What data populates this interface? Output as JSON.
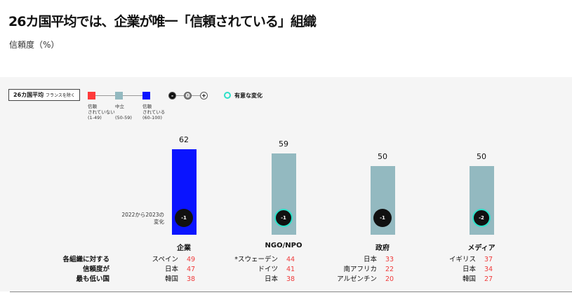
{
  "header": {
    "title": "26カ国平均では、企業が唯一「信頼されている」組織",
    "subtitle": "信頼度（%）"
  },
  "legend": {
    "average_label": "26カ国平均",
    "average_note": "フランスを除く",
    "items": [
      {
        "label": "信頼\nされていない\n(1-49)",
        "color": "#ff3b3b"
      },
      {
        "label": "中立\n\n(50-59)",
        "color": "#93b9c0"
      },
      {
        "label": "信頼\nされている\n(60-100)",
        "color": "#0a14ff"
      }
    ],
    "change_scale": [
      "-",
      "0",
      "+"
    ],
    "significant_label": "有意な変化",
    "significant_color": "#2de0c8"
  },
  "change_label": "2022から2023の\n変化",
  "lowest_label": "各組織に対する\n信頼度が\n最も低い国",
  "chart_data": {
    "type": "bar",
    "title": "26カ国平均では、企業が唯一「信頼されている」組織",
    "ylabel": "信頼度（%）",
    "ylim": [
      0,
      100
    ],
    "categories": [
      "企業",
      "NGO/NPO",
      "政府",
      "メディア"
    ],
    "values": [
      62,
      59,
      50,
      50
    ],
    "value_labels": [
      "62",
      "59",
      "50",
      "50"
    ],
    "colors": [
      "#0a14ff",
      "#93b9c0",
      "#93b9c0",
      "#93b9c0"
    ],
    "changes": [
      "-1",
      "-1",
      "-1",
      "-2"
    ],
    "significant": [
      false,
      true,
      false,
      true
    ],
    "lowest": [
      [
        {
          "country": "スペイン",
          "value": "49"
        },
        {
          "country": "日本",
          "value": "47"
        },
        {
          "country": "韓国",
          "value": "38"
        }
      ],
      [
        {
          "country": "*スウェーデン",
          "value": "44"
        },
        {
          "country": "ドイツ",
          "value": "41"
        },
        {
          "country": "日本",
          "value": "38"
        }
      ],
      [
        {
          "country": "日本",
          "value": "33"
        },
        {
          "country": "南アフリカ",
          "value": "22"
        },
        {
          "country": "アルゼンチン",
          "value": "20"
        }
      ],
      [
        {
          "country": "イギリス",
          "value": "37"
        },
        {
          "country": "日本",
          "value": "34"
        },
        {
          "country": "韓国",
          "value": "27"
        }
      ]
    ]
  }
}
